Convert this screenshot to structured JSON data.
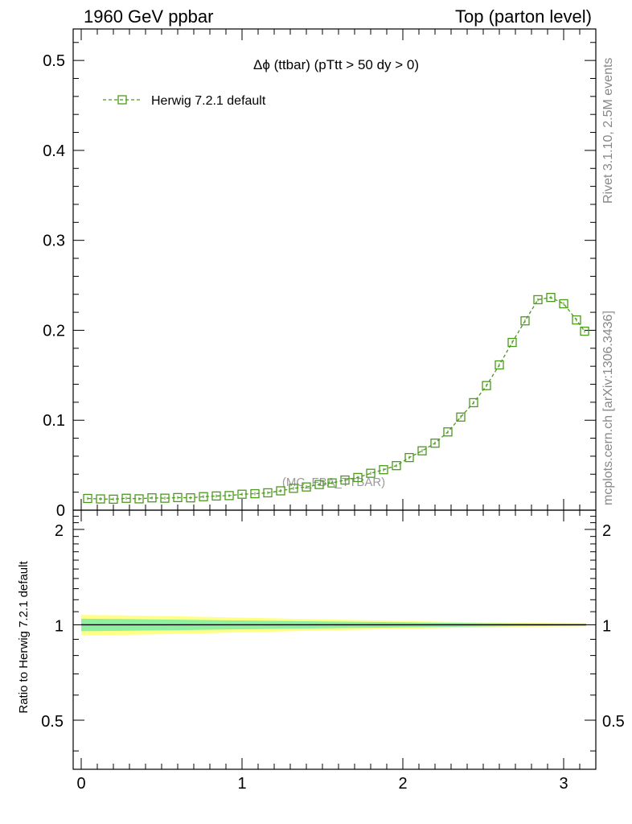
{
  "header": {
    "left": "1960 GeV ppbar",
    "right": "Top (parton level)"
  },
  "side_labels": {
    "rivet": "Rivet 3.1.10,  2.5M events",
    "mcplots": "mcplots.cern.ch [arXiv:1306.3436]"
  },
  "watermark": "(MC_FBA_TTBAR)",
  "colors": {
    "series": "#4a9a1a",
    "band_inner": "#8ef0a0",
    "band_outer": "#ffff88"
  },
  "chart_data": [
    {
      "type": "line",
      "title": "Δϕ (ttbar) (pTtt > 50 dy > 0)",
      "legend_position": "top-left",
      "xlim": [
        -0.05,
        3.2
      ],
      "ylim": [
        0,
        0.535
      ],
      "yticks": [
        0,
        0.1,
        0.2,
        0.3,
        0.4,
        0.5
      ],
      "ytick_labels": [
        "0",
        "0.1",
        "0.2",
        "0.3",
        "0.4",
        "0.5"
      ],
      "series": [
        {
          "name": "Herwig 7.2.1 default",
          "marker": "open-square",
          "line": "dashed",
          "x": [
            0.04,
            0.12,
            0.2,
            0.28,
            0.36,
            0.44,
            0.52,
            0.6,
            0.68,
            0.76,
            0.84,
            0.92,
            1.0,
            1.08,
            1.16,
            1.24,
            1.32,
            1.4,
            1.48,
            1.56,
            1.64,
            1.72,
            1.8,
            1.88,
            1.96,
            2.04,
            2.12,
            2.2,
            2.28,
            2.36,
            2.44,
            2.52,
            2.6,
            2.68,
            2.76,
            2.84,
            2.92,
            3.0,
            3.08,
            3.13
          ],
          "y": [
            0.013,
            0.0125,
            0.0122,
            0.0132,
            0.0126,
            0.0137,
            0.0133,
            0.014,
            0.0137,
            0.015,
            0.0158,
            0.0162,
            0.0177,
            0.0183,
            0.0193,
            0.0215,
            0.0243,
            0.0258,
            0.0285,
            0.0303,
            0.0335,
            0.0363,
            0.041,
            0.045,
            0.0495,
            0.0585,
            0.066,
            0.0745,
            0.087,
            0.1035,
            0.1195,
            0.1385,
            0.1615,
            0.1865,
            0.2105,
            0.234,
            0.2365,
            0.2295,
            0.2115,
            0.199
          ]
        }
      ]
    },
    {
      "type": "area",
      "ylabel": "Ratio to Herwig 7.2.1 default",
      "xlim": [
        -0.05,
        3.2
      ],
      "ylim": [
        0.35,
        2.3
      ],
      "xticks": [
        0,
        1,
        2,
        3
      ],
      "xtick_labels": [
        "0",
        "1",
        "2",
        "3"
      ],
      "yticks": [
        0.5,
        1,
        2
      ],
      "ytick_labels": [
        "0.5",
        "1",
        "2"
      ],
      "reference_line": 1,
      "band_x": [
        0.0,
        0.3,
        0.6,
        0.9,
        1.2,
        1.5,
        1.8,
        2.1,
        2.4,
        2.7,
        3.0,
        3.14
      ],
      "band_inner_half": [
        0.045,
        0.042,
        0.038,
        0.033,
        0.029,
        0.025,
        0.021,
        0.017,
        0.013,
        0.01,
        0.008,
        0.007
      ],
      "band_outer_half": [
        0.075,
        0.07,
        0.064,
        0.056,
        0.048,
        0.04,
        0.033,
        0.026,
        0.02,
        0.015,
        0.012,
        0.011
      ]
    }
  ]
}
